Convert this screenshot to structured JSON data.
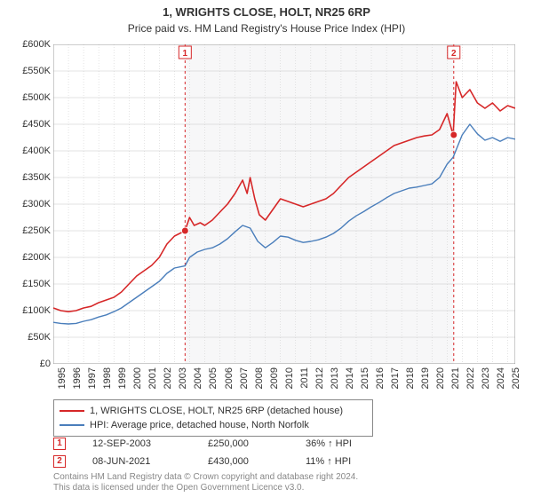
{
  "header": {
    "title": "1, WRIGHTS CLOSE, HOLT, NR25 6RP",
    "subtitle": "Price paid vs. HM Land Registry's House Price Index (HPI)"
  },
  "chart": {
    "type": "line",
    "background_color": "#ffffff",
    "plot_bg_color": "#f7f7f8",
    "grid_color": "#c8c8c8",
    "border_color": "#999999",
    "font_color": "#333333",
    "tick_fontsize": 11,
    "title_fontsize": 13,
    "subtitle_fontsize": 12,
    "y_axis": {
      "min": 0,
      "max": 600000,
      "step": 50000,
      "labels": [
        "£0",
        "£50K",
        "£100K",
        "£150K",
        "£200K",
        "£250K",
        "£300K",
        "£350K",
        "£400K",
        "£450K",
        "£500K",
        "£550K",
        "£600K"
      ]
    },
    "x_axis": {
      "min": 1995,
      "max": 2025.5,
      "ticks": [
        1995,
        1996,
        1997,
        1998,
        1999,
        2000,
        2001,
        2002,
        2003,
        2004,
        2005,
        2006,
        2007,
        2008,
        2009,
        2010,
        2011,
        2012,
        2013,
        2014,
        2015,
        2016,
        2017,
        2018,
        2019,
        2020,
        2021,
        2022,
        2023,
        2024,
        2025
      ]
    },
    "series": [
      {
        "name": "subject",
        "label": "1, WRIGHTS CLOSE, HOLT, NR25 6RP (detached house)",
        "color": "#d62728",
        "line_width": 1.6,
        "data": [
          [
            1995.0,
            105000
          ],
          [
            1995.5,
            100000
          ],
          [
            1996.0,
            98000
          ],
          [
            1996.5,
            100000
          ],
          [
            1997.0,
            105000
          ],
          [
            1997.5,
            108000
          ],
          [
            1998.0,
            115000
          ],
          [
            1998.5,
            120000
          ],
          [
            1999.0,
            125000
          ],
          [
            1999.5,
            135000
          ],
          [
            2000.0,
            150000
          ],
          [
            2000.5,
            165000
          ],
          [
            2001.0,
            175000
          ],
          [
            2001.5,
            185000
          ],
          [
            2002.0,
            200000
          ],
          [
            2002.5,
            225000
          ],
          [
            2003.0,
            240000
          ],
          [
            2003.7,
            250000
          ],
          [
            2004.0,
            275000
          ],
          [
            2004.3,
            260000
          ],
          [
            2004.7,
            265000
          ],
          [
            2005.0,
            260000
          ],
          [
            2005.5,
            270000
          ],
          [
            2006.0,
            285000
          ],
          [
            2006.5,
            300000
          ],
          [
            2007.0,
            320000
          ],
          [
            2007.5,
            345000
          ],
          [
            2007.8,
            320000
          ],
          [
            2008.0,
            350000
          ],
          [
            2008.3,
            310000
          ],
          [
            2008.6,
            280000
          ],
          [
            2009.0,
            270000
          ],
          [
            2009.5,
            290000
          ],
          [
            2010.0,
            310000
          ],
          [
            2010.5,
            305000
          ],
          [
            2011.0,
            300000
          ],
          [
            2011.5,
            295000
          ],
          [
            2012.0,
            300000
          ],
          [
            2012.5,
            305000
          ],
          [
            2013.0,
            310000
          ],
          [
            2013.5,
            320000
          ],
          [
            2014.0,
            335000
          ],
          [
            2014.5,
            350000
          ],
          [
            2015.0,
            360000
          ],
          [
            2015.5,
            370000
          ],
          [
            2016.0,
            380000
          ],
          [
            2016.5,
            390000
          ],
          [
            2017.0,
            400000
          ],
          [
            2017.5,
            410000
          ],
          [
            2018.0,
            415000
          ],
          [
            2018.5,
            420000
          ],
          [
            2019.0,
            425000
          ],
          [
            2019.5,
            428000
          ],
          [
            2020.0,
            430000
          ],
          [
            2020.5,
            440000
          ],
          [
            2021.0,
            470000
          ],
          [
            2021.4,
            430000
          ],
          [
            2021.6,
            530000
          ],
          [
            2022.0,
            500000
          ],
          [
            2022.5,
            515000
          ],
          [
            2023.0,
            490000
          ],
          [
            2023.5,
            480000
          ],
          [
            2024.0,
            490000
          ],
          [
            2024.5,
            475000
          ],
          [
            2025.0,
            485000
          ],
          [
            2025.5,
            480000
          ]
        ]
      },
      {
        "name": "hpi",
        "label": "HPI: Average price, detached house, North Norfolk",
        "color": "#4a7ebb",
        "line_width": 1.4,
        "data": [
          [
            1995.0,
            78000
          ],
          [
            1995.5,
            76000
          ],
          [
            1996.0,
            75000
          ],
          [
            1996.5,
            76000
          ],
          [
            1997.0,
            80000
          ],
          [
            1997.5,
            83000
          ],
          [
            1998.0,
            88000
          ],
          [
            1998.5,
            92000
          ],
          [
            1999.0,
            98000
          ],
          [
            1999.5,
            105000
          ],
          [
            2000.0,
            115000
          ],
          [
            2000.5,
            125000
          ],
          [
            2001.0,
            135000
          ],
          [
            2001.5,
            145000
          ],
          [
            2002.0,
            155000
          ],
          [
            2002.5,
            170000
          ],
          [
            2003.0,
            180000
          ],
          [
            2003.7,
            184000
          ],
          [
            2004.0,
            200000
          ],
          [
            2004.5,
            210000
          ],
          [
            2005.0,
            215000
          ],
          [
            2005.5,
            218000
          ],
          [
            2006.0,
            225000
          ],
          [
            2006.5,
            235000
          ],
          [
            2007.0,
            248000
          ],
          [
            2007.5,
            260000
          ],
          [
            2008.0,
            255000
          ],
          [
            2008.5,
            230000
          ],
          [
            2009.0,
            218000
          ],
          [
            2009.5,
            228000
          ],
          [
            2010.0,
            240000
          ],
          [
            2010.5,
            238000
          ],
          [
            2011.0,
            232000
          ],
          [
            2011.5,
            228000
          ],
          [
            2012.0,
            230000
          ],
          [
            2012.5,
            233000
          ],
          [
            2013.0,
            238000
          ],
          [
            2013.5,
            245000
          ],
          [
            2014.0,
            255000
          ],
          [
            2014.5,
            268000
          ],
          [
            2015.0,
            278000
          ],
          [
            2015.5,
            286000
          ],
          [
            2016.0,
            295000
          ],
          [
            2016.5,
            303000
          ],
          [
            2017.0,
            312000
          ],
          [
            2017.5,
            320000
          ],
          [
            2018.0,
            325000
          ],
          [
            2018.5,
            330000
          ],
          [
            2019.0,
            332000
          ],
          [
            2019.5,
            335000
          ],
          [
            2020.0,
            338000
          ],
          [
            2020.5,
            350000
          ],
          [
            2021.0,
            375000
          ],
          [
            2021.4,
            388000
          ],
          [
            2022.0,
            430000
          ],
          [
            2022.5,
            450000
          ],
          [
            2023.0,
            432000
          ],
          [
            2023.5,
            420000
          ],
          [
            2024.0,
            425000
          ],
          [
            2024.5,
            418000
          ],
          [
            2025.0,
            425000
          ],
          [
            2025.5,
            422000
          ]
        ]
      }
    ],
    "sale_markers": [
      {
        "idx": "1",
        "x": 2003.7,
        "color": "#d62728",
        "line_dash": "3,3"
      },
      {
        "idx": "2",
        "x": 2021.44,
        "color": "#d62728",
        "line_dash": "3,3"
      }
    ],
    "sale_point_color": "#d62728",
    "sale_point_radius": 4
  },
  "legend_border_color": "#888888",
  "sales": [
    {
      "idx": "1",
      "date": "12-SEP-2003",
      "price": "£250,000",
      "delta": "36% ↑ HPI",
      "color": "#d62728"
    },
    {
      "idx": "2",
      "date": "08-JUN-2021",
      "price": "£430,000",
      "delta": "11% ↑ HPI",
      "color": "#d62728"
    }
  ],
  "notes": {
    "line1": "Contains HM Land Registry data © Crown copyright and database right 2024.",
    "line2": "This data is licensed under the Open Government Licence v3.0."
  }
}
